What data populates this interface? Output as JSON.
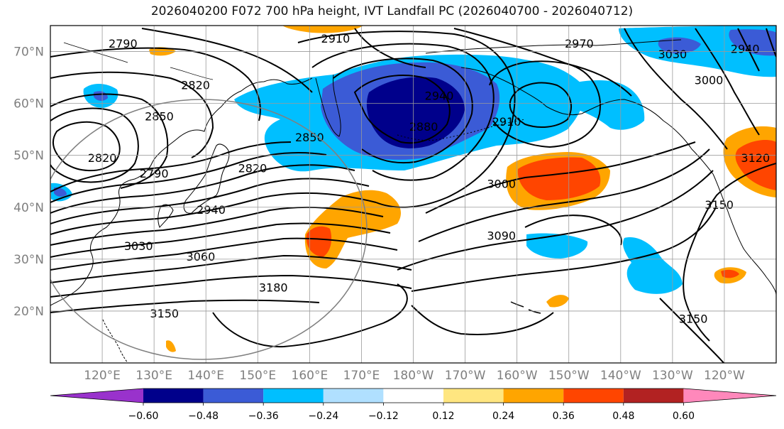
{
  "title": "2026040200 F072 700 hPa height, IVT Landfall PC (2026040700 - 2026040712)",
  "colors": {
    "strong_neg": "#00008b",
    "mod_neg": "#3b5bd6",
    "weak_neg": "#00bfff",
    "light_neg": "#b0e0ff",
    "weak_pos": "#ffa500",
    "mod_pos": "#ff4500",
    "cb_purple": "#9932cc",
    "cb_darkred": "#b22222",
    "cb_pink": "#ff88bb",
    "cb_yellow": "#ffe680",
    "contour": "#000000",
    "circle": "#808080"
  },
  "map": {
    "lat_labels": [
      "70°N",
      "60°N",
      "50°N",
      "40°N",
      "30°N",
      "20°N"
    ],
    "lon_labels": [
      "120°E",
      "130°E",
      "140°E",
      "150°E",
      "160°E",
      "170°E",
      "180°W",
      "170°W",
      "160°W",
      "150°W",
      "140°W",
      "130°W",
      "120°W"
    ],
    "contour_labels": [
      {
        "text": "2790",
        "lon": 124,
        "lat": 71
      },
      {
        "text": "2820",
        "lon": 138,
        "lat": 63
      },
      {
        "text": "2850",
        "lon": 131,
        "lat": 57
      },
      {
        "text": "2820",
        "lon": 120,
        "lat": 49
      },
      {
        "text": "2790",
        "lon": 130,
        "lat": 46
      },
      {
        "text": "2820",
        "lon": 149,
        "lat": 47
      },
      {
        "text": "2850",
        "lon": 160,
        "lat": 53
      },
      {
        "text": "2940",
        "lon": 141,
        "lat": 39
      },
      {
        "text": "3030",
        "lon": 127,
        "lat": 32
      },
      {
        "text": "3060",
        "lon": 139,
        "lat": 30
      },
      {
        "text": "3150",
        "lon": 132,
        "lat": 19
      },
      {
        "text": "3180",
        "lon": 153,
        "lat": 24
      },
      {
        "text": "2910",
        "lon": 165,
        "lat": 72
      },
      {
        "text": "2940",
        "lon": 185,
        "lat": 61
      },
      {
        "text": "2880",
        "lon": 182,
        "lat": 55
      },
      {
        "text": "2910",
        "lon": 198,
        "lat": 56
      },
      {
        "text": "3000",
        "lon": 197,
        "lat": 44
      },
      {
        "text": "3090",
        "lon": 197,
        "lat": 34
      },
      {
        "text": "2970",
        "lon": 212,
        "lat": 71
      },
      {
        "text": "3030",
        "lon": 230,
        "lat": 69
      },
      {
        "text": "3000",
        "lon": 237,
        "lat": 64
      },
      {
        "text": "2940",
        "lon": 244,
        "lat": 70
      },
      {
        "text": "3120",
        "lon": 246,
        "lat": 49
      },
      {
        "text": "3150",
        "lon": 239,
        "lat": 40
      },
      {
        "text": "3150",
        "lon": 234,
        "lat": 18
      }
    ]
  },
  "colorbar": {
    "levels": [
      -0.6,
      -0.48,
      -0.36,
      -0.24,
      -0.12,
      0.12,
      0.24,
      0.36,
      0.48,
      0.6
    ],
    "tick_labels": [
      "−0.60",
      "−0.48",
      "−0.36",
      "−0.24",
      "−0.12",
      "0.12",
      "0.24",
      "0.36",
      "0.48",
      "0.60"
    ]
  }
}
